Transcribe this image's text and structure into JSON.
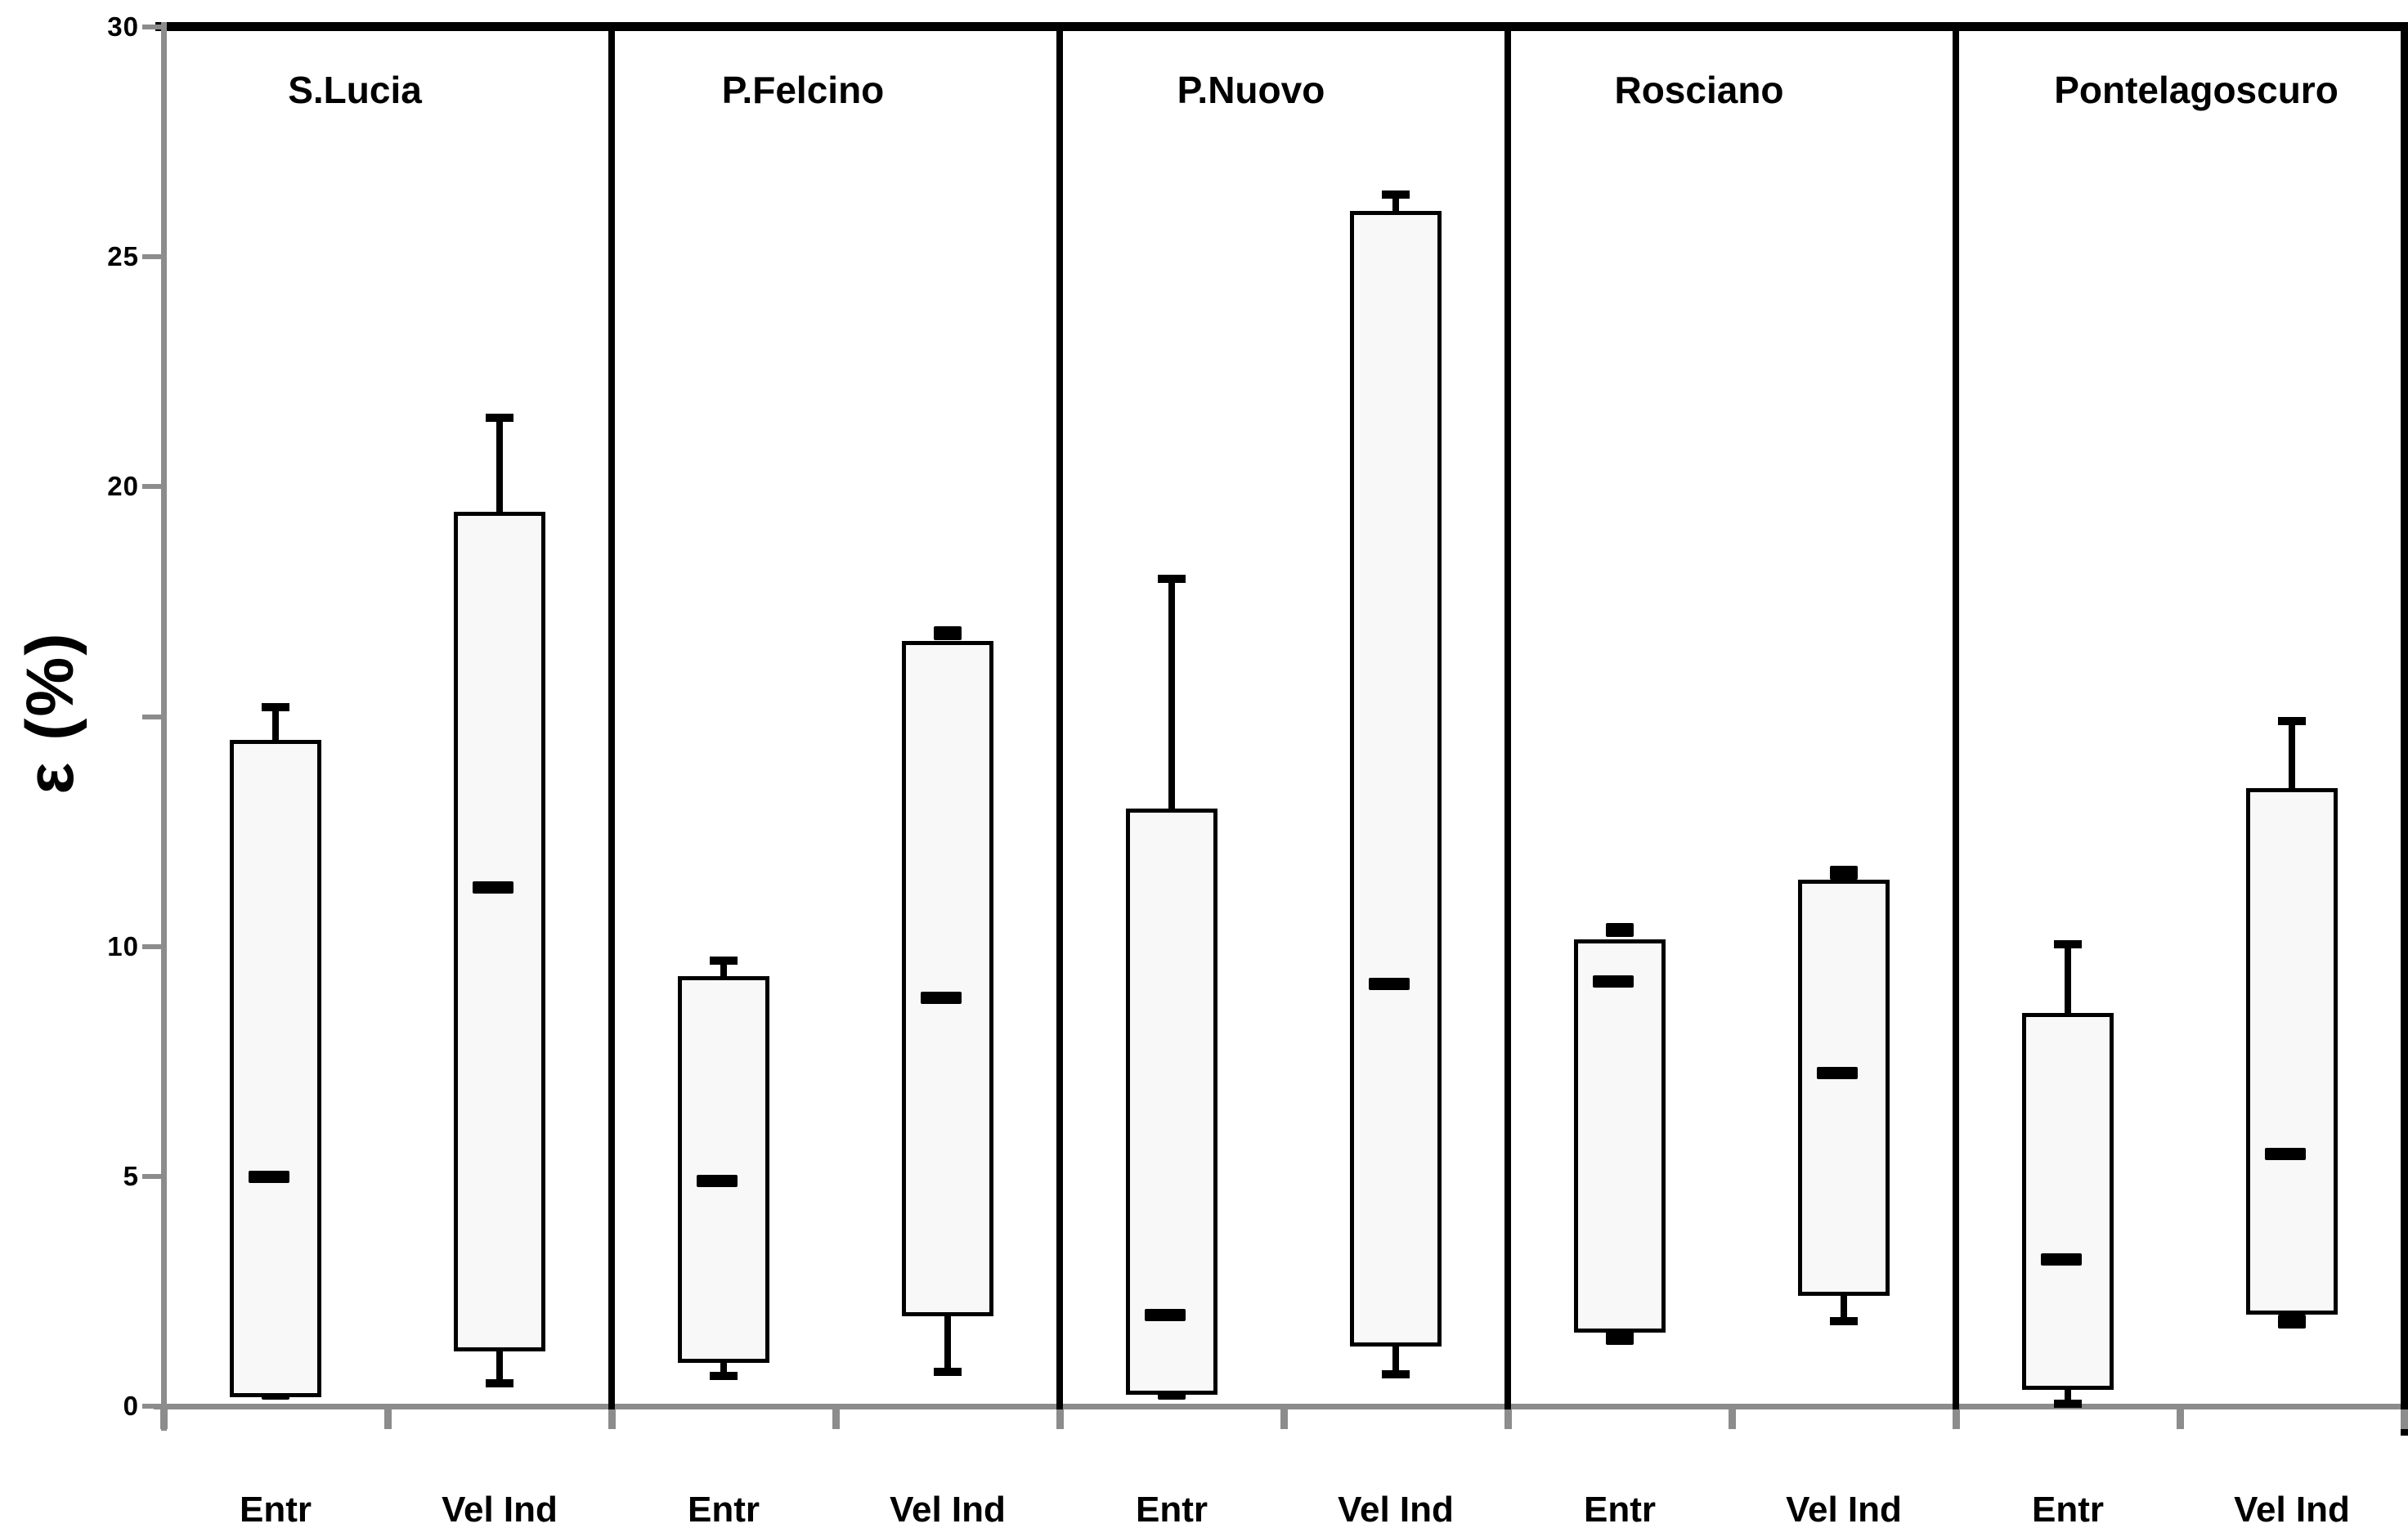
{
  "chart_data": {
    "type": "box",
    "title": "",
    "ylabel": "ε (%)",
    "xlabel": "",
    "ylim": [
      0,
      30
    ],
    "grid": false,
    "legend": "none",
    "axis_color": "#8c8c8c",
    "line_color": "#000000",
    "box_fill": "#f8f8f8",
    "yticks": [
      {
        "value": 0,
        "label": "0"
      },
      {
        "value": 5,
        "label": "5"
      },
      {
        "value": 10,
        "label": "10"
      },
      {
        "value": 15,
        "label": ""
      },
      {
        "value": 20,
        "label": "20"
      },
      {
        "value": 25,
        "label": "25"
      },
      {
        "value": 30,
        "label": "30"
      }
    ],
    "categories_per_station": [
      "Entr",
      "Vel Ind"
    ],
    "stations": [
      {
        "name": "S.Lucia",
        "boxes": [
          {
            "category": "Entr",
            "q1": 0.2,
            "median": 5.0,
            "q3": 14.5,
            "whisker_low": 0.3,
            "whisker_high": 15.2,
            "cap_low": "dash",
            "cap_high": "T"
          },
          {
            "category": "Vel Ind",
            "q1": 1.2,
            "median": 11.3,
            "q3": 19.45,
            "whisker_low": 0.5,
            "whisker_high": 21.5,
            "cap_low": "T",
            "cap_high": "T"
          }
        ]
      },
      {
        "name": "P.Felcino",
        "boxes": [
          {
            "category": "Entr",
            "q1": 0.95,
            "median": 4.9,
            "q3": 9.35,
            "whisker_low": 0.65,
            "whisker_high": 9.7,
            "cap_low": "T",
            "cap_high": "T"
          },
          {
            "category": "Vel Ind",
            "q1": 1.95,
            "median": 8.9,
            "q3": 16.65,
            "whisker_low": 0.75,
            "whisker_high": 16.8,
            "cap_low": "T",
            "cap_high": "dash"
          }
        ]
      },
      {
        "name": "P.Nuovo",
        "boxes": [
          {
            "category": "Entr",
            "q1": 0.25,
            "median": 2.0,
            "q3": 13.0,
            "whisker_low": 0.3,
            "whisker_high": 18.0,
            "cap_low": "dash",
            "cap_high": "T"
          },
          {
            "category": "Vel Ind",
            "q1": 1.3,
            "median": 9.2,
            "q3": 26.0,
            "whisker_low": 0.7,
            "whisker_high": 26.35,
            "cap_low": "T",
            "cap_high": "T"
          }
        ]
      },
      {
        "name": "Rosciano",
        "boxes": [
          {
            "category": "Entr",
            "q1": 1.6,
            "median": 9.25,
            "q3": 10.15,
            "whisker_low": 1.5,
            "whisker_high": 10.35,
            "cap_low": "dash",
            "cap_high": "dash"
          },
          {
            "category": "Vel Ind",
            "q1": 2.4,
            "median": 7.25,
            "q3": 11.45,
            "whisker_low": 1.85,
            "whisker_high": 11.6,
            "cap_low": "T",
            "cap_high": "dash"
          }
        ]
      },
      {
        "name": "Pontelagoscuro",
        "boxes": [
          {
            "category": "Entr",
            "q1": 0.35,
            "median": 3.2,
            "q3": 8.55,
            "whisker_low": 0.05,
            "whisker_high": 10.05,
            "cap_low": "T",
            "cap_high": "T"
          },
          {
            "category": "Vel Ind",
            "q1": 2.0,
            "median": 5.5,
            "q3": 13.45,
            "whisker_low": 1.85,
            "whisker_high": 14.9,
            "cap_low": "dash",
            "cap_high": "T"
          }
        ]
      }
    ]
  }
}
